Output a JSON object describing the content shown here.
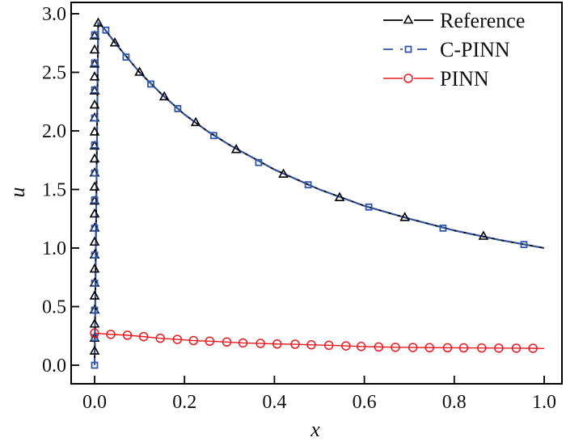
{
  "chart_data": {
    "type": "line",
    "title": "",
    "xlabel": "x",
    "ylabel": "u",
    "xlim": [
      -0.05,
      1.04
    ],
    "ylim": [
      -0.16,
      3.1
    ],
    "xticks": [
      0.0,
      0.2,
      0.4,
      0.6,
      0.8,
      1.0
    ],
    "xtick_labels": [
      "0.0",
      "0.2",
      "0.4",
      "0.6",
      "0.8",
      "1.0"
    ],
    "yticks": [
      0.0,
      0.5,
      1.0,
      1.5,
      2.0,
      2.5,
      3.0
    ],
    "ytick_labels": [
      "0.0",
      "0.5",
      "1.0",
      "1.5",
      "2.0",
      "2.5",
      "3.0"
    ],
    "grid": false,
    "legend_position": "top-right",
    "series": [
      {
        "name": "Reference",
        "color": "#000000",
        "linestyle": "solid",
        "marker": "triangle",
        "line": {
          "x": [
            0,
            0.008,
            0.02,
            0.05,
            0.1,
            0.15,
            0.2,
            0.25,
            0.3,
            0.4,
            0.5,
            0.6,
            0.7,
            0.8,
            0.9,
            1.0
          ],
          "y": [
            0,
            2.92,
            2.88,
            2.73,
            2.5,
            2.31,
            2.14,
            2.0,
            1.88,
            1.67,
            1.5,
            1.36,
            1.25,
            1.15,
            1.07,
            1.0
          ]
        },
        "markers": {
          "x": [
            0,
            0,
            0,
            0,
            0,
            0,
            0,
            0,
            0,
            0,
            0,
            0,
            0,
            0,
            0,
            0,
            0,
            0,
            0,
            0,
            0,
            0,
            0,
            0,
            0.008,
            0.045,
            0.1,
            0.155,
            0.225,
            0.315,
            0.42,
            0.545,
            0.69,
            0.865
          ],
          "y": [
            0.12,
            0.23,
            0.35,
            0.47,
            0.59,
            0.7,
            0.82,
            0.94,
            1.05,
            1.17,
            1.29,
            1.4,
            1.52,
            1.64,
            1.76,
            1.87,
            1.99,
            2.11,
            2.22,
            2.34,
            2.46,
            2.57,
            2.69,
            2.81,
            2.92,
            2.75,
            2.5,
            2.29,
            2.07,
            1.84,
            1.63,
            1.43,
            1.26,
            1.1
          ]
        }
      },
      {
        "name": "C-PINN",
        "color": "#2f55a4",
        "linestyle": "dashed",
        "marker": "square",
        "line": {
          "x": [
            0,
            0.008,
            0.02,
            0.05,
            0.1,
            0.15,
            0.2,
            0.25,
            0.3,
            0.4,
            0.5,
            0.6,
            0.7,
            0.8,
            0.9,
            1.0
          ],
          "y": [
            0,
            2.92,
            2.88,
            2.73,
            2.5,
            2.31,
            2.14,
            2.0,
            1.88,
            1.67,
            1.5,
            1.36,
            1.25,
            1.15,
            1.07,
            1.0
          ]
        },
        "markers": {
          "x": [
            0,
            0,
            0,
            0,
            0,
            0,
            0,
            0,
            0,
            0,
            0,
            0,
            0,
            0.025,
            0.07,
            0.125,
            0.185,
            0.265,
            0.365,
            0.475,
            0.61,
            0.775,
            0.955
          ],
          "y": [
            0,
            0.235,
            0.47,
            0.7,
            0.94,
            1.17,
            1.41,
            1.64,
            1.88,
            2.11,
            2.35,
            2.58,
            2.82,
            2.86,
            2.63,
            2.4,
            2.19,
            1.96,
            1.73,
            1.54,
            1.35,
            1.17,
            1.03
          ]
        }
      },
      {
        "name": "PINN",
        "color": "#e8191f",
        "linestyle": "solid",
        "marker": "circle",
        "line": {
          "x": [
            0,
            0.036,
            0.073,
            0.109,
            0.146,
            0.184,
            0.22,
            0.256,
            0.294,
            0.33,
            0.369,
            0.406,
            0.446,
            0.482,
            0.521,
            0.559,
            0.593,
            0.632,
            0.669,
            0.708,
            0.745,
            0.785,
            0.821,
            0.861,
            0.899,
            0.938,
            0.975,
            1.0
          ],
          "y": [
            0.274,
            0.263,
            0.256,
            0.244,
            0.23,
            0.22,
            0.21,
            0.205,
            0.198,
            0.19,
            0.186,
            0.181,
            0.179,
            0.174,
            0.17,
            0.165,
            0.16,
            0.156,
            0.153,
            0.151,
            0.15,
            0.149,
            0.148,
            0.147,
            0.146,
            0.145,
            0.144,
            0.143
          ]
        },
        "markers": {
          "x": [
            0,
            0.036,
            0.073,
            0.109,
            0.146,
            0.184,
            0.22,
            0.256,
            0.294,
            0.33,
            0.369,
            0.406,
            0.446,
            0.482,
            0.521,
            0.559,
            0.593,
            0.632,
            0.669,
            0.708,
            0.745,
            0.785,
            0.821,
            0.861,
            0.899,
            0.938,
            0.975
          ],
          "y": [
            0.274,
            0.263,
            0.256,
            0.244,
            0.23,
            0.22,
            0.21,
            0.205,
            0.198,
            0.19,
            0.186,
            0.181,
            0.179,
            0.174,
            0.17,
            0.165,
            0.16,
            0.156,
            0.153,
            0.151,
            0.15,
            0.149,
            0.148,
            0.147,
            0.146,
            0.145,
            0.144
          ]
        }
      }
    ]
  }
}
